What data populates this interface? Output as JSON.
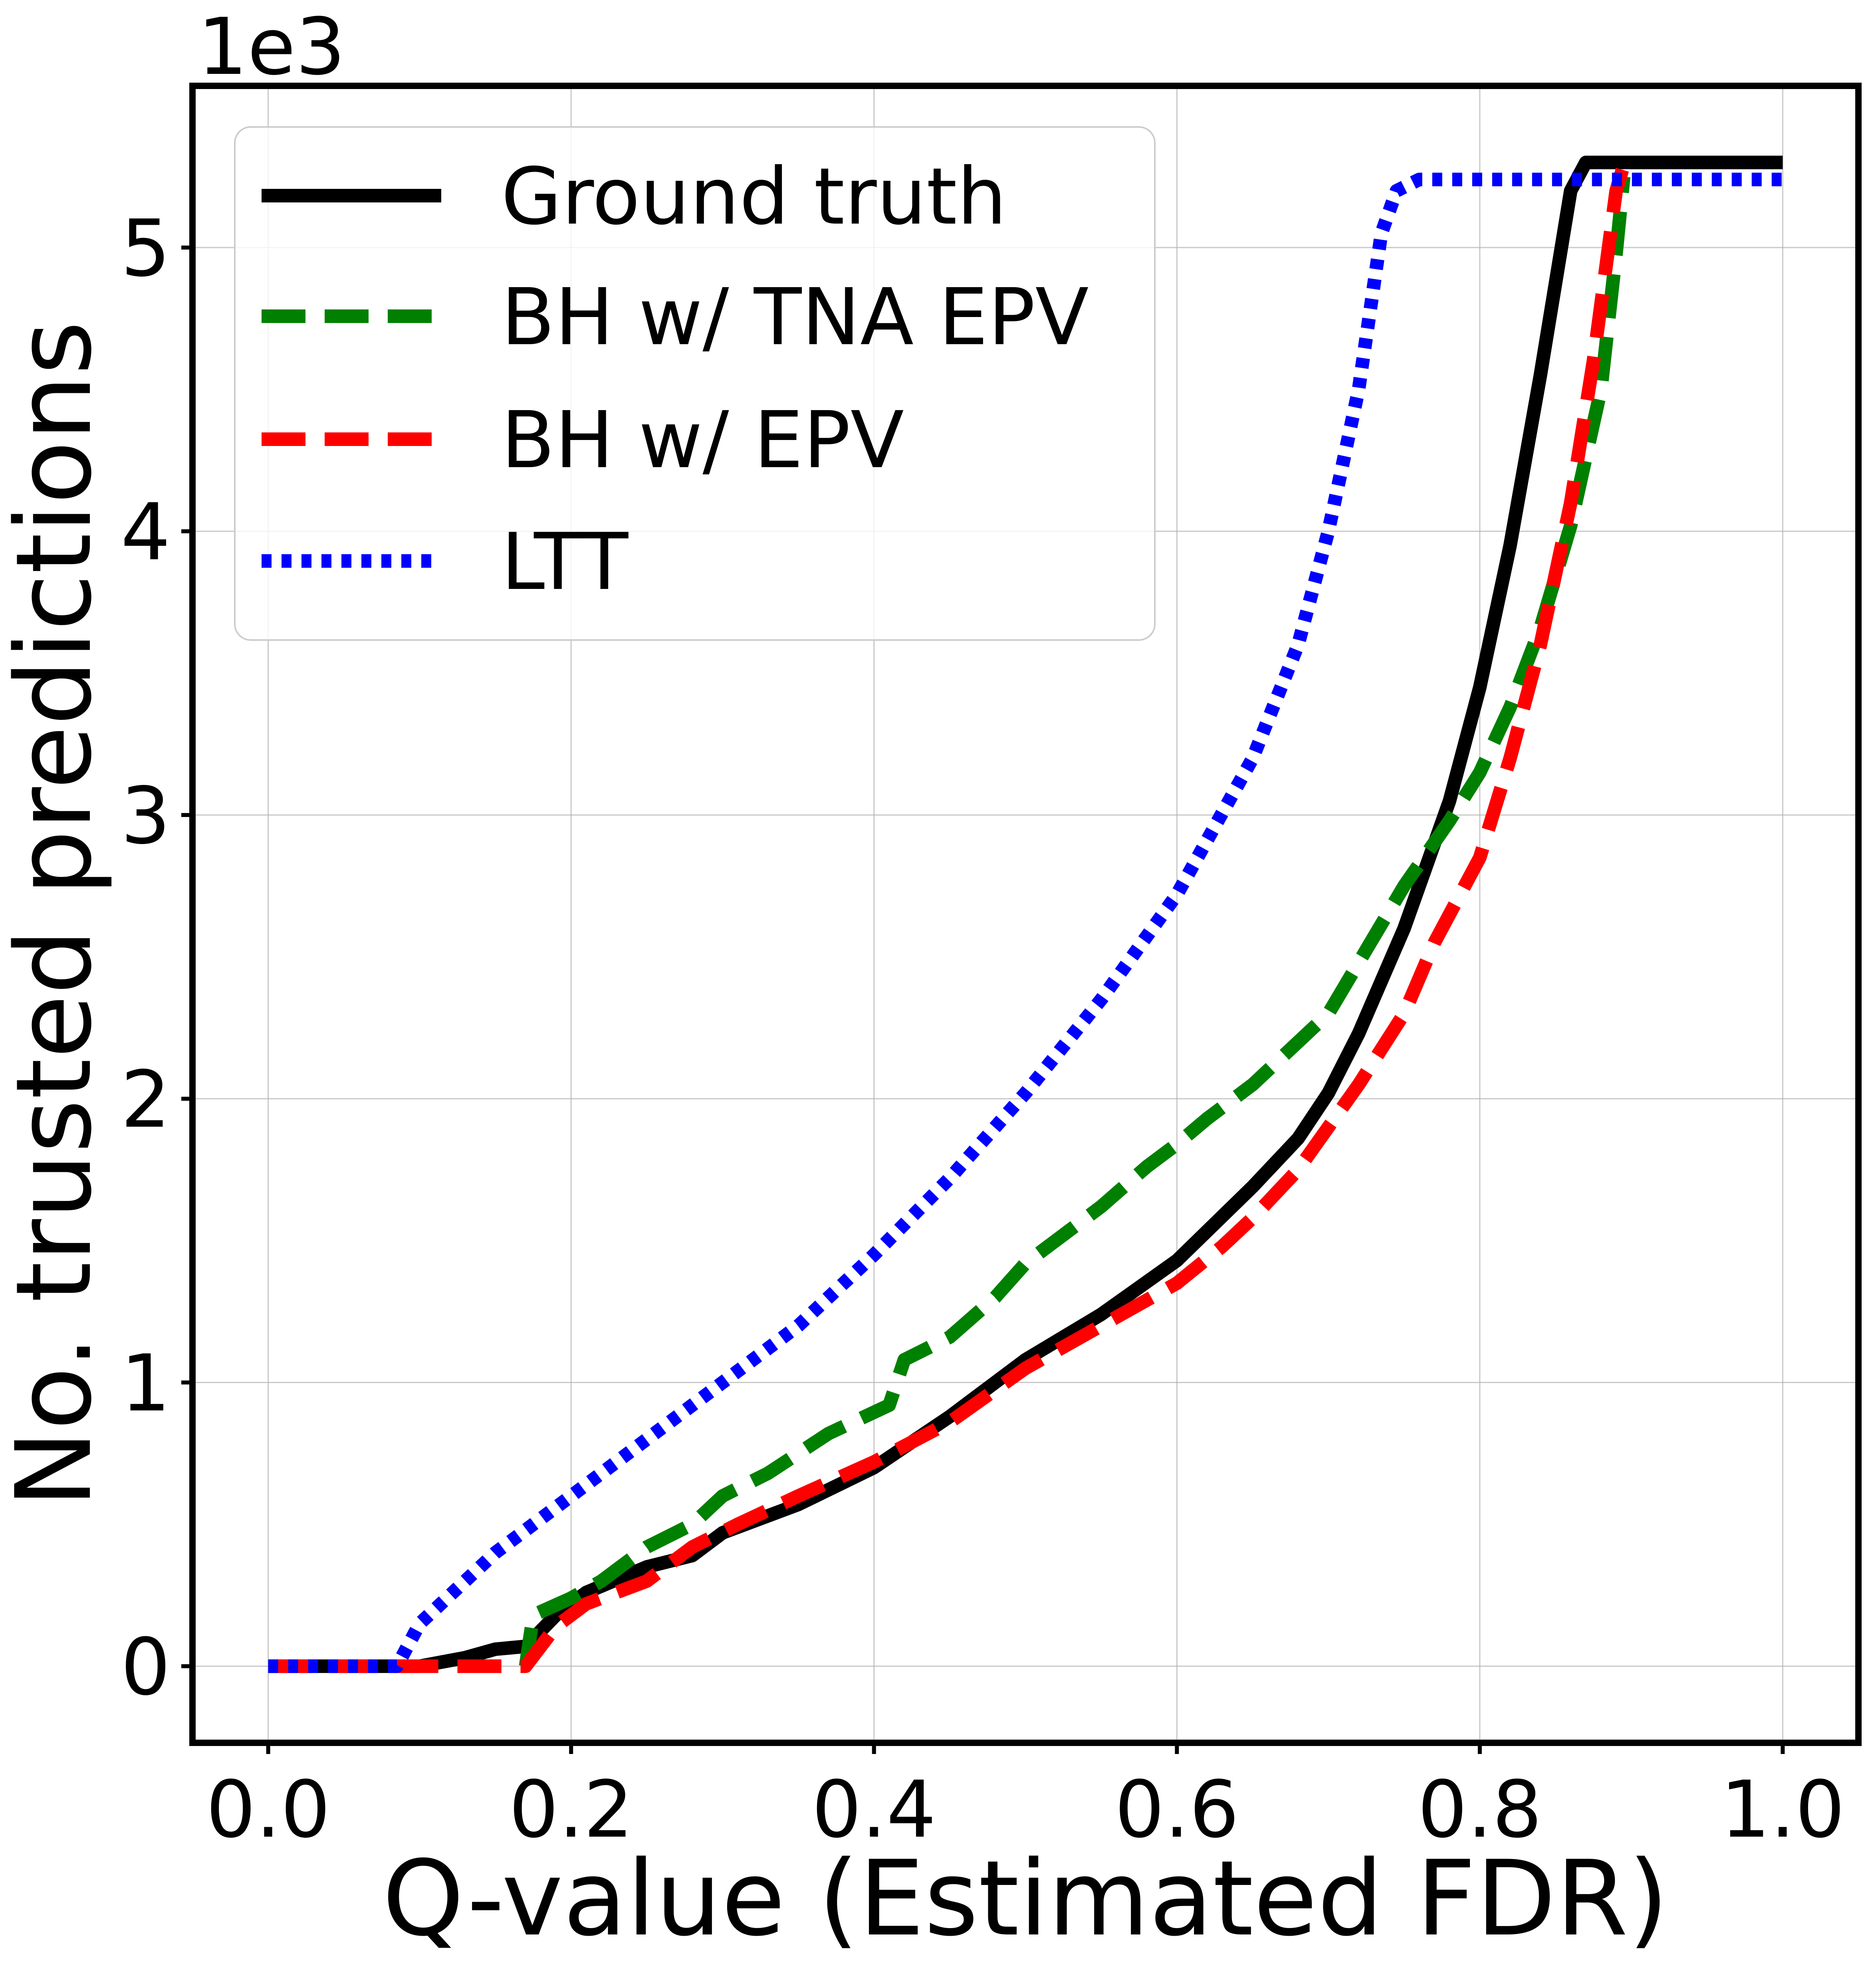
{
  "chart_data": {
    "type": "line",
    "xlabel": "Q-value (Estimated FDR)",
    "ylabel": "No. trusted predictions",
    "y_multiplier_label": "1e3",
    "xlim": [
      -0.05,
      1.05
    ],
    "ylim": [
      -0.27,
      5.57
    ],
    "x_ticks": [
      0.0,
      0.2,
      0.4,
      0.6,
      0.8,
      1.0
    ],
    "x_tick_labels": [
      "0.0",
      "0.2",
      "0.4",
      "0.6",
      "0.8",
      "1.0"
    ],
    "y_ticks": [
      0,
      1,
      2,
      3,
      4,
      5
    ],
    "y_tick_labels": [
      "0",
      "1",
      "2",
      "3",
      "4",
      "5"
    ],
    "grid": true,
    "legend_position": "top-left",
    "series": [
      {
        "name": "Ground truth",
        "color": "#000000",
        "style": "solid",
        "x": [
          0.0,
          0.1,
          0.13,
          0.15,
          0.17,
          0.19,
          0.21,
          0.25,
          0.28,
          0.3,
          0.35,
          0.4,
          0.45,
          0.5,
          0.55,
          0.6,
          0.65,
          0.68,
          0.7,
          0.72,
          0.75,
          0.78,
          0.8,
          0.82,
          0.84,
          0.86,
          0.87,
          1.0
        ],
        "y": [
          0.0,
          0.0,
          0.03,
          0.06,
          0.07,
          0.18,
          0.26,
          0.35,
          0.39,
          0.47,
          0.57,
          0.7,
          0.88,
          1.08,
          1.24,
          1.43,
          1.69,
          1.86,
          2.02,
          2.23,
          2.6,
          3.05,
          3.45,
          3.95,
          4.55,
          5.2,
          5.3,
          5.3
        ]
      },
      {
        "name": "BH w/ TNA EPV",
        "color": "#008000",
        "style": "dashed",
        "x": [
          0.0,
          0.17,
          0.175,
          0.2,
          0.22,
          0.25,
          0.28,
          0.3,
          0.33,
          0.37,
          0.41,
          0.42,
          0.45,
          0.48,
          0.5,
          0.52,
          0.55,
          0.58,
          0.6,
          0.62,
          0.65,
          0.68,
          0.7,
          0.72,
          0.75,
          0.78,
          0.8,
          0.82,
          0.84,
          0.86,
          0.88,
          0.89,
          0.895
        ],
        "y": [
          0.0,
          0.0,
          0.18,
          0.24,
          0.3,
          0.42,
          0.5,
          0.6,
          0.68,
          0.82,
          0.92,
          1.08,
          1.16,
          1.3,
          1.42,
          1.5,
          1.62,
          1.76,
          1.84,
          1.93,
          2.05,
          2.2,
          2.3,
          2.48,
          2.75,
          2.98,
          3.15,
          3.38,
          3.66,
          4.02,
          4.5,
          4.98,
          5.25
        ]
      },
      {
        "name": "BH w/ EPV",
        "color": "#ff0000",
        "style": "dashed",
        "x": [
          0.0,
          0.17,
          0.19,
          0.21,
          0.25,
          0.28,
          0.31,
          0.35,
          0.4,
          0.45,
          0.5,
          0.55,
          0.6,
          0.63,
          0.65,
          0.68,
          0.7,
          0.72,
          0.75,
          0.77,
          0.8,
          0.82,
          0.84,
          0.86,
          0.875,
          0.885,
          0.89,
          0.895
        ],
        "y": [
          0.0,
          0.0,
          0.14,
          0.22,
          0.3,
          0.42,
          0.5,
          0.6,
          0.72,
          0.86,
          1.05,
          1.2,
          1.35,
          1.48,
          1.58,
          1.75,
          1.9,
          2.05,
          2.3,
          2.55,
          2.85,
          3.2,
          3.6,
          4.1,
          4.6,
          5.0,
          5.2,
          5.29
        ]
      },
      {
        "name": "LTT",
        "color": "#0000ff",
        "style": "dotted",
        "x": [
          0.0,
          0.085,
          0.1,
          0.15,
          0.2,
          0.25,
          0.3,
          0.35,
          0.4,
          0.45,
          0.5,
          0.55,
          0.6,
          0.65,
          0.68,
          0.7,
          0.72,
          0.735,
          0.745,
          0.76,
          1.0
        ],
        "y": [
          0.0,
          0.0,
          0.15,
          0.4,
          0.6,
          0.8,
          1.0,
          1.2,
          1.45,
          1.72,
          2.02,
          2.35,
          2.72,
          3.2,
          3.6,
          4.0,
          4.5,
          5.05,
          5.2,
          5.24,
          5.24
        ]
      }
    ]
  }
}
